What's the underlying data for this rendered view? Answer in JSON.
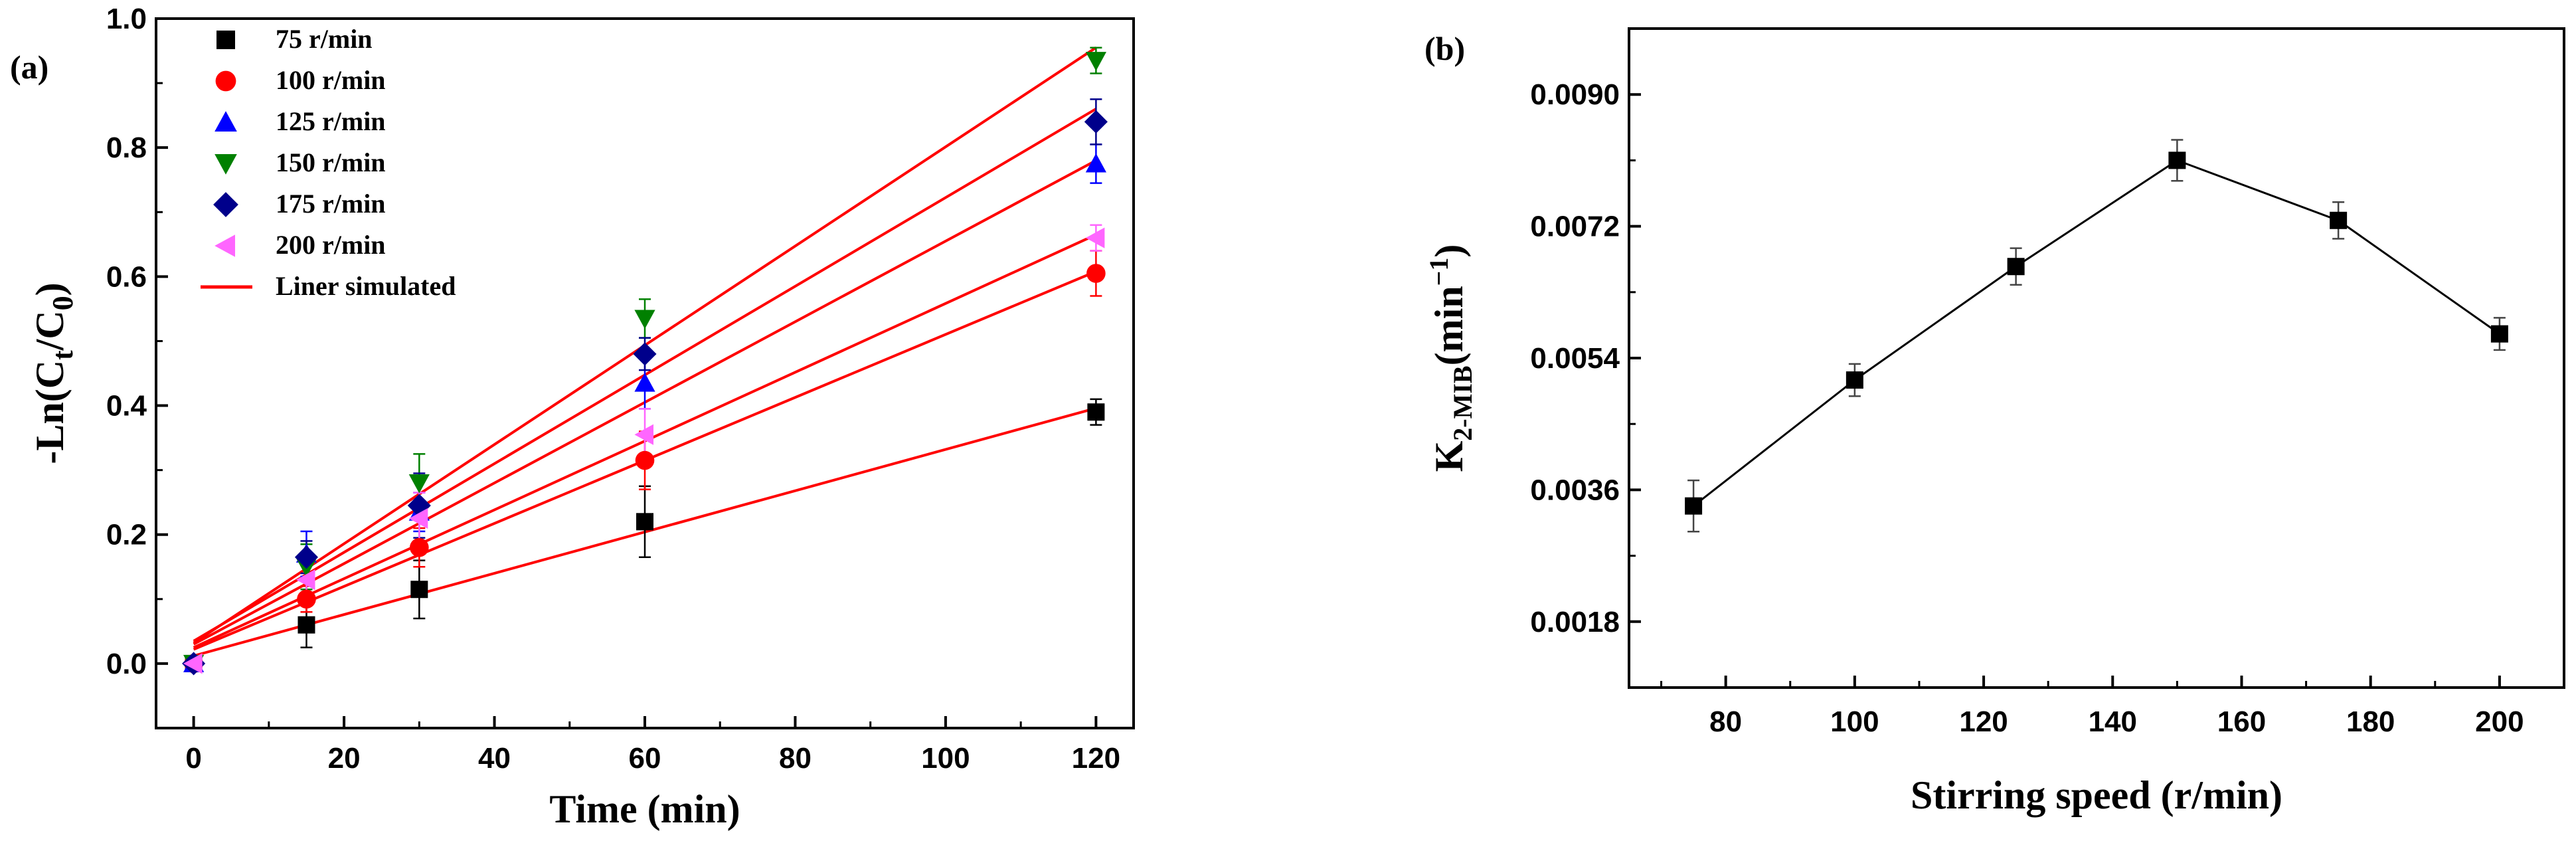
{
  "chart_data": [
    {
      "panel": "(a)",
      "type": "scatter",
      "xlabel": "Time (min)",
      "ylabel": "-Ln(C",
      "ylabel_sub_t": "t",
      "ylabel_mid": "/C",
      "ylabel_sub_0": "0",
      "ylabel_end": ")",
      "xlim": [
        -5,
        125
      ],
      "ylim": [
        -0.1,
        1.0
      ],
      "xticks": [
        0,
        20,
        40,
        60,
        80,
        100,
        120
      ],
      "xtick_labels": [
        "0",
        "20",
        "40",
        "60",
        "80",
        "100",
        "120"
      ],
      "yticks": [
        0.0,
        0.2,
        0.4,
        0.6,
        0.8,
        1.0
      ],
      "ytick_labels": [
        "0.0",
        "0.2",
        "0.4",
        "0.6",
        "0.8",
        "1.0"
      ],
      "x": [
        0,
        15,
        30,
        60,
        120
      ],
      "fit_label": "Liner simulated",
      "fit_color": "#ff0000",
      "series": [
        {
          "name": "75 r/min",
          "marker": "square",
          "color": "#000000",
          "values": [
            0.0,
            0.06,
            0.115,
            0.22,
            0.39
          ],
          "errors": [
            0.0,
            0.035,
            0.045,
            0.055,
            0.02
          ],
          "fit": [
            0.012,
            0.396
          ]
        },
        {
          "name": "100 r/min",
          "marker": "circle",
          "color": "#ff0000",
          "values": [
            0.0,
            0.1,
            0.18,
            0.315,
            0.605
          ],
          "errors": [
            0.0,
            0.02,
            0.03,
            0.045,
            0.035
          ],
          "fit": [
            0.022,
            0.608
          ]
        },
        {
          "name": "125 r/min",
          "marker": "triangle-up",
          "color": "#0000ff",
          "values": [
            0.0,
            0.17,
            0.235,
            0.435,
            0.775
          ],
          "errors": [
            0.0,
            0.035,
            0.03,
            0.04,
            0.03
          ],
          "fit": [
            0.03,
            0.78
          ]
        },
        {
          "name": "150 r/min",
          "marker": "triangle-down",
          "color": "#008000",
          "values": [
            0.0,
            0.15,
            0.28,
            0.535,
            0.935
          ],
          "errors": [
            0.0,
            0.035,
            0.045,
            0.03,
            0.02
          ],
          "fit": [
            0.032,
            0.955
          ]
        },
        {
          "name": "175 r/min",
          "marker": "diamond",
          "color": "#00008b",
          "values": [
            0.0,
            0.165,
            0.245,
            0.48,
            0.84
          ],
          "errors": [
            0.0,
            0.025,
            0.05,
            0.025,
            0.035
          ],
          "fit": [
            0.035,
            0.86
          ]
        },
        {
          "name": "200 r/min",
          "marker": "triangle-left",
          "color": "#ff66ff",
          "values": [
            0.0,
            0.13,
            0.225,
            0.355,
            0.66
          ],
          "errors": [
            0.0,
            0.025,
            0.04,
            0.04,
            0.02
          ],
          "fit": [
            0.025,
            0.665
          ]
        }
      ]
    },
    {
      "panel": "(b)",
      "type": "line",
      "xlabel": "Stirring speed (r/min)",
      "ylabel": "K",
      "ylabel_sub": "2-MIB",
      "ylabel_unit": "(min",
      "ylabel_sup": "−1",
      "ylabel_end": ")",
      "xlim": [
        65,
        210
      ],
      "ylim": [
        0.0009,
        0.0099
      ],
      "xticks": [
        80,
        100,
        120,
        140,
        160,
        180,
        200
      ],
      "xtick_labels": [
        "80",
        "100",
        "120",
        "140",
        "160",
        "180",
        "200"
      ],
      "yticks": [
        0.0018,
        0.0036,
        0.0054,
        0.0072,
        0.009
      ],
      "ytick_labels": [
        "0.0018",
        "0.0036",
        "0.0054",
        "0.0072",
        "0.0090"
      ],
      "x": [
        75,
        100,
        125,
        150,
        175,
        200
      ],
      "values": [
        0.00338,
        0.0051,
        0.00665,
        0.0081,
        0.00728,
        0.00573
      ],
      "errors": [
        0.00035,
        0.00022,
        0.00025,
        0.00028,
        0.00025,
        0.00022
      ],
      "marker": "square",
      "color": "#000000"
    }
  ]
}
